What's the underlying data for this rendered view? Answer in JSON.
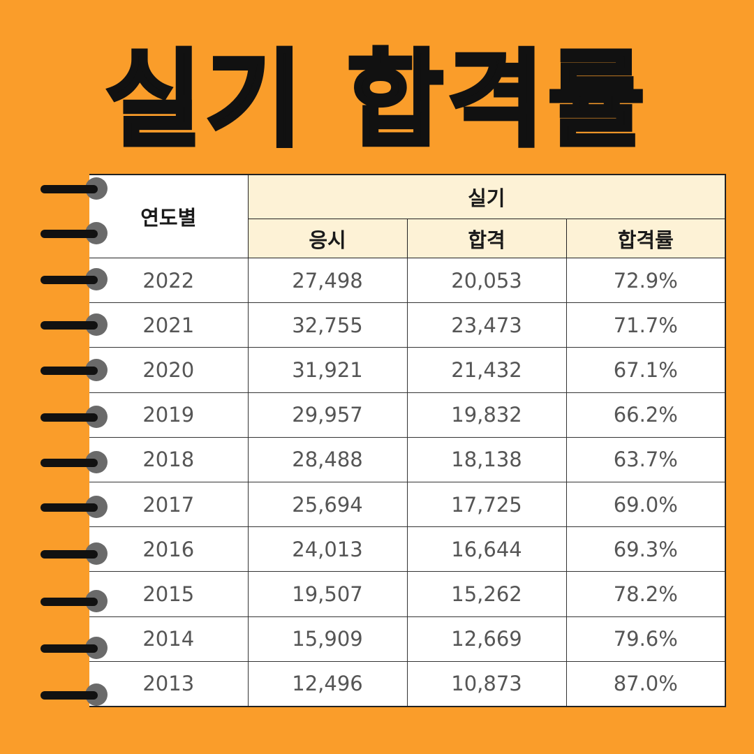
{
  "title": "실기 합격률",
  "table": {
    "year_header": "연도별",
    "group_header": "실기",
    "columns": [
      "응시",
      "합격",
      "합격률"
    ],
    "rows": [
      {
        "year": "2022",
        "applicants": "27,498",
        "passed": "20,053",
        "rate": "72.9%"
      },
      {
        "year": "2021",
        "applicants": "32,755",
        "passed": "23,473",
        "rate": "71.7%"
      },
      {
        "year": "2020",
        "applicants": "31,921",
        "passed": "21,432",
        "rate": "67.1%"
      },
      {
        "year": "2019",
        "applicants": "29,957",
        "passed": "19,832",
        "rate": "66.2%"
      },
      {
        "year": "2018",
        "applicants": "28,488",
        "passed": "18,138",
        "rate": "63.7%"
      },
      {
        "year": "2017",
        "applicants": "25,694",
        "passed": "17,725",
        "rate": "69.0%"
      },
      {
        "year": "2016",
        "applicants": "24,013",
        "passed": "16,644",
        "rate": "69.3%"
      },
      {
        "year": "2015",
        "applicants": "19,507",
        "passed": "15,262",
        "rate": "78.2%"
      },
      {
        "year": "2014",
        "applicants": "15,909",
        "passed": "12,669",
        "rate": "79.6%"
      },
      {
        "year": "2013",
        "applicants": "12,496",
        "passed": "10,873",
        "rate": "87.0%"
      }
    ]
  },
  "colors": {
    "background": "#fa9d2a",
    "header_fill": "#fdf2d6",
    "ring_hole": "#6a6a6a",
    "ring_bar": "#111111"
  },
  "ring_icon": "notebook-spiral-ring-icon"
}
